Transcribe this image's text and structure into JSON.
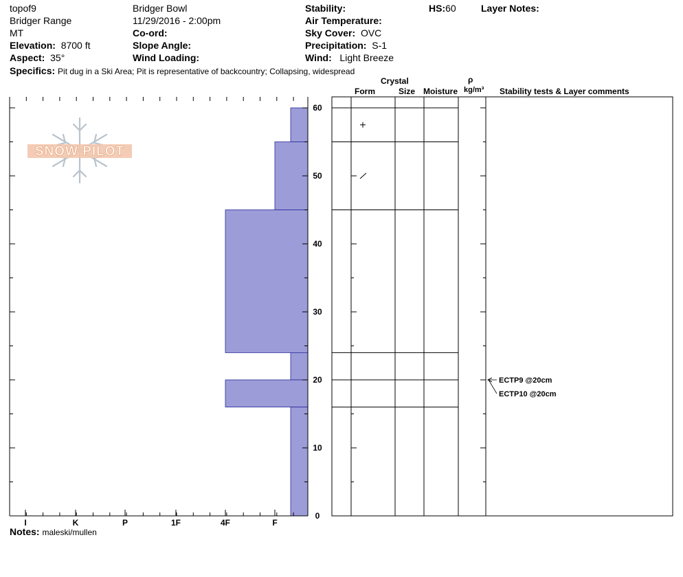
{
  "header": {
    "col1": {
      "pit_name": "topof9",
      "range": "Bridger Range",
      "state": "MT",
      "elevation_label": "Elevation:",
      "elevation": "8700 ft",
      "aspect_label": "Aspect:",
      "aspect": "35°"
    },
    "col2": {
      "location": "Bridger Bowl",
      "datetime": "11/29/2016 - 2:00pm",
      "coord_label": "Co-ord:",
      "slope_label": "Slope Angle:",
      "wind_loading_label": "Wind Loading:"
    },
    "col3": {
      "stability_label": "Stability:",
      "air_temp_label": "Air Temperature:",
      "sky_label": "Sky Cover:",
      "sky": "OVC",
      "precip_label": "Precipitation:",
      "precip": "S-1",
      "wind_label": "Wind:",
      "wind": "Light Breeze"
    },
    "hs_label": "HS:",
    "hs": "60",
    "layer_notes_label": "Layer Notes:",
    "specifics_label": "Specifics:",
    "specifics": "Pit dug in a Ski Area;  Pit is representative of backcountry;  Collapsing, widespread"
  },
  "logo_text": "SNOW PILOT",
  "hardness_axis": {
    "ticks": [
      "I",
      "K",
      "P",
      "1F",
      "4F",
      "F"
    ]
  },
  "depth_axis": {
    "ticks": [
      "0",
      "10",
      "20",
      "30",
      "40",
      "50",
      "60"
    ],
    "min": 0,
    "max": 60
  },
  "table_headers": {
    "crystal": "Crystal",
    "form": "Form",
    "size": "Size",
    "moisture": "Moisture",
    "rho": "ρ",
    "density_unit": "kg/m³",
    "comments": "Stability tests & Layer comments"
  },
  "notes_label": "Notes:",
  "notes": "maleski/mullen",
  "chart_data": {
    "type": "bar",
    "title": "",
    "xlabel": "",
    "ylabel": "",
    "ylim": [
      0,
      60
    ],
    "x_categories": [
      "I",
      "K",
      "P",
      "1F",
      "4F",
      "F"
    ],
    "layers": [
      {
        "bottom": 55,
        "top": 60,
        "hardness": "F"
      },
      {
        "bottom": 45,
        "top": 55,
        "hardness": "F"
      },
      {
        "bottom": 24,
        "top": 45,
        "hardness": "4F"
      },
      {
        "bottom": 20,
        "top": 24,
        "hardness": "F"
      },
      {
        "bottom": 16,
        "top": 20,
        "hardness": "4F"
      },
      {
        "bottom": 0,
        "top": 16,
        "hardness": "F"
      }
    ],
    "bar_color": "#9c9cd8",
    "layer_boundaries": [
      60,
      55,
      45,
      24,
      20,
      16
    ],
    "crystal_forms": [
      {
        "depth": 57.5,
        "symbol": "+"
      },
      {
        "depth": 50,
        "symbol": "/"
      }
    ],
    "stability_tests": [
      {
        "depth": 20,
        "label": "ECTP9 @20cm"
      },
      {
        "depth": 20,
        "label": "ECTP10 @20cm"
      }
    ]
  }
}
